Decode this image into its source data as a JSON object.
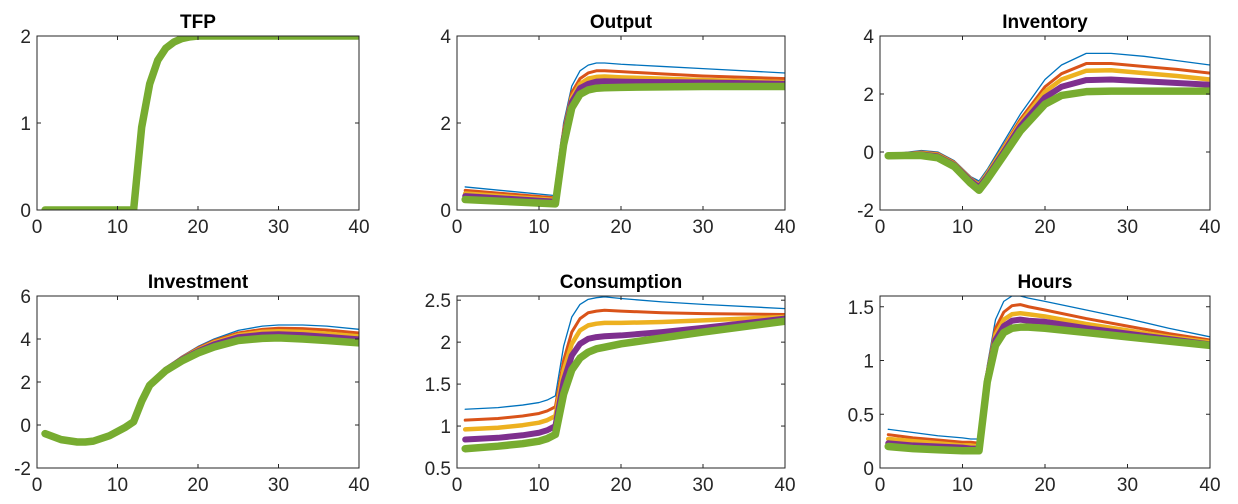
{
  "series_colors": [
    "#0072BD",
    "#D95319",
    "#EDB120",
    "#7E2F8E",
    "#77AC30"
  ],
  "chart_data": [
    {
      "type": "line",
      "title": "TFP",
      "xlim": [
        0,
        40
      ],
      "ylim": [
        0,
        2
      ],
      "xticks": [
        0,
        10,
        20,
        30,
        40
      ],
      "yticks": [
        0,
        1,
        2
      ],
      "ytick_labels": [
        "0",
        "1",
        "2"
      ],
      "x": [
        1,
        12,
        13,
        14,
        15,
        16,
        17,
        18,
        19,
        20,
        40
      ],
      "series": [
        {
          "values": [
            0,
            0,
            0.95,
            1.45,
            1.72,
            1.86,
            1.93,
            1.97,
            1.99,
            2.0,
            2.0
          ]
        },
        {
          "values": [
            0,
            0,
            0.95,
            1.45,
            1.72,
            1.86,
            1.93,
            1.97,
            1.99,
            2.0,
            2.0
          ]
        },
        {
          "values": [
            0,
            0,
            0.95,
            1.45,
            1.72,
            1.86,
            1.93,
            1.97,
            1.99,
            2.0,
            2.0
          ]
        },
        {
          "values": [
            0,
            0,
            0.95,
            1.45,
            1.72,
            1.86,
            1.93,
            1.97,
            1.99,
            2.0,
            2.0
          ]
        },
        {
          "values": [
            0,
            0,
            0.95,
            1.45,
            1.72,
            1.86,
            1.93,
            1.97,
            1.99,
            2.0,
            2.0
          ]
        }
      ]
    },
    {
      "type": "line",
      "title": "Output",
      "xlim": [
        0,
        40
      ],
      "ylim": [
        0,
        4
      ],
      "xticks": [
        0,
        10,
        20,
        30,
        40
      ],
      "yticks": [
        0,
        2,
        4
      ],
      "ytick_labels": [
        "0",
        "2",
        "4"
      ],
      "x": [
        1,
        12,
        13,
        14,
        15,
        16,
        17,
        18,
        20,
        25,
        30,
        40
      ],
      "series": [
        {
          "values": [
            0.53,
            0.33,
            2.0,
            2.85,
            3.2,
            3.33,
            3.38,
            3.38,
            3.35,
            3.3,
            3.25,
            3.15
          ]
        },
        {
          "values": [
            0.45,
            0.28,
            1.85,
            2.7,
            3.02,
            3.15,
            3.2,
            3.2,
            3.18,
            3.13,
            3.08,
            3.02
          ]
        },
        {
          "values": [
            0.38,
            0.23,
            1.72,
            2.58,
            2.9,
            3.02,
            3.06,
            3.07,
            3.05,
            3.02,
            2.99,
            2.94
          ]
        },
        {
          "values": [
            0.32,
            0.19,
            1.62,
            2.48,
            2.8,
            2.9,
            2.95,
            2.96,
            2.95,
            2.94,
            2.93,
            2.9
          ]
        },
        {
          "values": [
            0.24,
            0.14,
            1.5,
            2.35,
            2.66,
            2.76,
            2.8,
            2.81,
            2.82,
            2.83,
            2.84,
            2.84
          ]
        }
      ]
    },
    {
      "type": "line",
      "title": "Inventory",
      "xlim": [
        0,
        40
      ],
      "ylim": [
        -2,
        4
      ],
      "xticks": [
        0,
        10,
        20,
        30,
        40
      ],
      "yticks": [
        -2,
        0,
        2,
        4
      ],
      "ytick_labels": [
        "-2",
        "0",
        "2",
        "4"
      ],
      "x": [
        1,
        3,
        5,
        7,
        9,
        11,
        12,
        13,
        15,
        17,
        20,
        22,
        25,
        28,
        32,
        36,
        40
      ],
      "series": [
        {
          "values": [
            -0.05,
            -0.02,
            0.05,
            0.0,
            -0.3,
            -0.85,
            -1.0,
            -0.6,
            0.35,
            1.3,
            2.5,
            3.0,
            3.4,
            3.4,
            3.3,
            3.15,
            3.0
          ]
        },
        {
          "values": [
            -0.08,
            -0.05,
            0.0,
            -0.05,
            -0.35,
            -0.9,
            -1.1,
            -0.7,
            0.2,
            1.12,
            2.25,
            2.7,
            3.05,
            3.05,
            2.95,
            2.85,
            2.72
          ]
        },
        {
          "values": [
            -0.1,
            -0.08,
            -0.04,
            -0.1,
            -0.4,
            -0.95,
            -1.15,
            -0.75,
            0.12,
            1.0,
            2.08,
            2.5,
            2.8,
            2.82,
            2.72,
            2.62,
            2.5
          ]
        },
        {
          "values": [
            -0.12,
            -0.1,
            -0.08,
            -0.15,
            -0.45,
            -1.0,
            -1.22,
            -0.85,
            0.0,
            0.88,
            1.88,
            2.25,
            2.48,
            2.5,
            2.44,
            2.38,
            2.32
          ]
        },
        {
          "values": [
            -0.13,
            -0.12,
            -0.12,
            -0.2,
            -0.5,
            -1.08,
            -1.32,
            -0.95,
            -0.12,
            0.72,
            1.65,
            1.95,
            2.08,
            2.1,
            2.1,
            2.1,
            2.1
          ]
        }
      ]
    },
    {
      "type": "line",
      "title": "Investment",
      "xlim": [
        0,
        40
      ],
      "ylim": [
        -2,
        6
      ],
      "xticks": [
        0,
        10,
        20,
        30,
        40
      ],
      "yticks": [
        -2,
        0,
        2,
        4,
        6
      ],
      "ytick_labels": [
        "-2",
        "0",
        "2",
        "4",
        "6"
      ],
      "x": [
        1,
        3,
        5,
        6,
        7,
        9,
        11,
        12,
        13,
        14,
        16,
        18,
        20,
        22,
        25,
        28,
        30,
        33,
        36,
        40
      ],
      "series": [
        {
          "values": [
            -0.4,
            -0.72,
            -0.85,
            -0.85,
            -0.8,
            -0.55,
            -0.15,
            0.1,
            1.1,
            1.85,
            2.65,
            3.2,
            3.65,
            4.0,
            4.4,
            4.6,
            4.65,
            4.65,
            4.6,
            4.45
          ]
        },
        {
          "values": [
            -0.4,
            -0.71,
            -0.83,
            -0.83,
            -0.78,
            -0.53,
            -0.13,
            0.12,
            1.1,
            1.85,
            2.62,
            3.15,
            3.58,
            3.92,
            4.28,
            4.45,
            4.5,
            4.48,
            4.42,
            4.28
          ]
        },
        {
          "values": [
            -0.4,
            -0.7,
            -0.82,
            -0.82,
            -0.77,
            -0.52,
            -0.12,
            0.13,
            1.1,
            1.85,
            2.6,
            3.1,
            3.5,
            3.84,
            4.18,
            4.33,
            4.36,
            4.33,
            4.25,
            4.12
          ]
        },
        {
          "values": [
            -0.4,
            -0.69,
            -0.8,
            -0.8,
            -0.76,
            -0.51,
            -0.11,
            0.14,
            1.1,
            1.85,
            2.57,
            3.05,
            3.43,
            3.75,
            4.08,
            4.2,
            4.22,
            4.18,
            4.1,
            3.98
          ]
        },
        {
          "values": [
            -0.4,
            -0.68,
            -0.79,
            -0.79,
            -0.75,
            -0.5,
            -0.1,
            0.15,
            1.1,
            1.85,
            2.53,
            2.98,
            3.35,
            3.63,
            3.93,
            4.03,
            4.05,
            4.0,
            3.93,
            3.82
          ]
        }
      ]
    },
    {
      "type": "line",
      "title": "Consumption",
      "xlim": [
        0,
        40
      ],
      "ylim": [
        0.5,
        2.55
      ],
      "xticks": [
        0,
        10,
        20,
        30,
        40
      ],
      "yticks": [
        0.5,
        1,
        1.5,
        2,
        2.5
      ],
      "ytick_labels": [
        "0.5",
        "1",
        "1.5",
        "2",
        "2.5"
      ],
      "x": [
        1,
        5,
        8,
        10,
        11,
        12,
        13,
        14,
        15,
        16,
        17,
        18,
        20,
        25,
        30,
        40
      ],
      "series": [
        {
          "values": [
            1.2,
            1.22,
            1.25,
            1.28,
            1.31,
            1.36,
            1.95,
            2.3,
            2.45,
            2.51,
            2.53,
            2.54,
            2.52,
            2.48,
            2.45,
            2.4
          ]
        },
        {
          "values": [
            1.07,
            1.09,
            1.12,
            1.15,
            1.18,
            1.23,
            1.78,
            2.12,
            2.28,
            2.35,
            2.37,
            2.38,
            2.37,
            2.35,
            2.34,
            2.33
          ]
        },
        {
          "values": [
            0.96,
            0.98,
            1.01,
            1.04,
            1.07,
            1.12,
            1.66,
            1.98,
            2.14,
            2.2,
            2.22,
            2.23,
            2.23,
            2.24,
            2.26,
            2.3
          ]
        },
        {
          "values": [
            0.84,
            0.86,
            0.89,
            0.92,
            0.95,
            1.0,
            1.53,
            1.84,
            1.98,
            2.04,
            2.06,
            2.07,
            2.08,
            2.12,
            2.17,
            2.28
          ]
        },
        {
          "values": [
            0.73,
            0.76,
            0.79,
            0.82,
            0.85,
            0.9,
            1.38,
            1.67,
            1.81,
            1.88,
            1.92,
            1.94,
            1.98,
            2.05,
            2.12,
            2.25
          ]
        }
      ]
    },
    {
      "type": "line",
      "title": "Hours",
      "xlim": [
        0,
        40
      ],
      "ylim": [
        0,
        1.6
      ],
      "xticks": [
        0,
        10,
        20,
        30,
        40
      ],
      "yticks": [
        0,
        0.5,
        1,
        1.5
      ],
      "ytick_labels": [
        "0",
        "0.5",
        "1",
        "1.5"
      ],
      "x": [
        1,
        4,
        7,
        10,
        11,
        12,
        13,
        14,
        15,
        16,
        17,
        18,
        20,
        25,
        30,
        35,
        40
      ],
      "series": [
        {
          "values": [
            0.36,
            0.33,
            0.3,
            0.28,
            0.27,
            0.27,
            0.95,
            1.38,
            1.55,
            1.6,
            1.6,
            1.58,
            1.55,
            1.47,
            1.39,
            1.3,
            1.22
          ]
        },
        {
          "values": [
            0.31,
            0.28,
            0.26,
            0.24,
            0.24,
            0.23,
            0.9,
            1.3,
            1.45,
            1.51,
            1.52,
            1.5,
            1.47,
            1.39,
            1.32,
            1.25,
            1.19
          ]
        },
        {
          "values": [
            0.27,
            0.25,
            0.23,
            0.21,
            0.21,
            0.2,
            0.86,
            1.24,
            1.38,
            1.43,
            1.44,
            1.43,
            1.41,
            1.34,
            1.28,
            1.22,
            1.17
          ]
        },
        {
          "values": [
            0.23,
            0.21,
            0.2,
            0.19,
            0.18,
            0.18,
            0.83,
            1.19,
            1.32,
            1.37,
            1.38,
            1.37,
            1.36,
            1.3,
            1.25,
            1.2,
            1.15
          ]
        },
        {
          "values": [
            0.2,
            0.18,
            0.17,
            0.16,
            0.16,
            0.16,
            0.8,
            1.14,
            1.26,
            1.3,
            1.31,
            1.31,
            1.3,
            1.26,
            1.22,
            1.18,
            1.14
          ]
        }
      ]
    }
  ]
}
